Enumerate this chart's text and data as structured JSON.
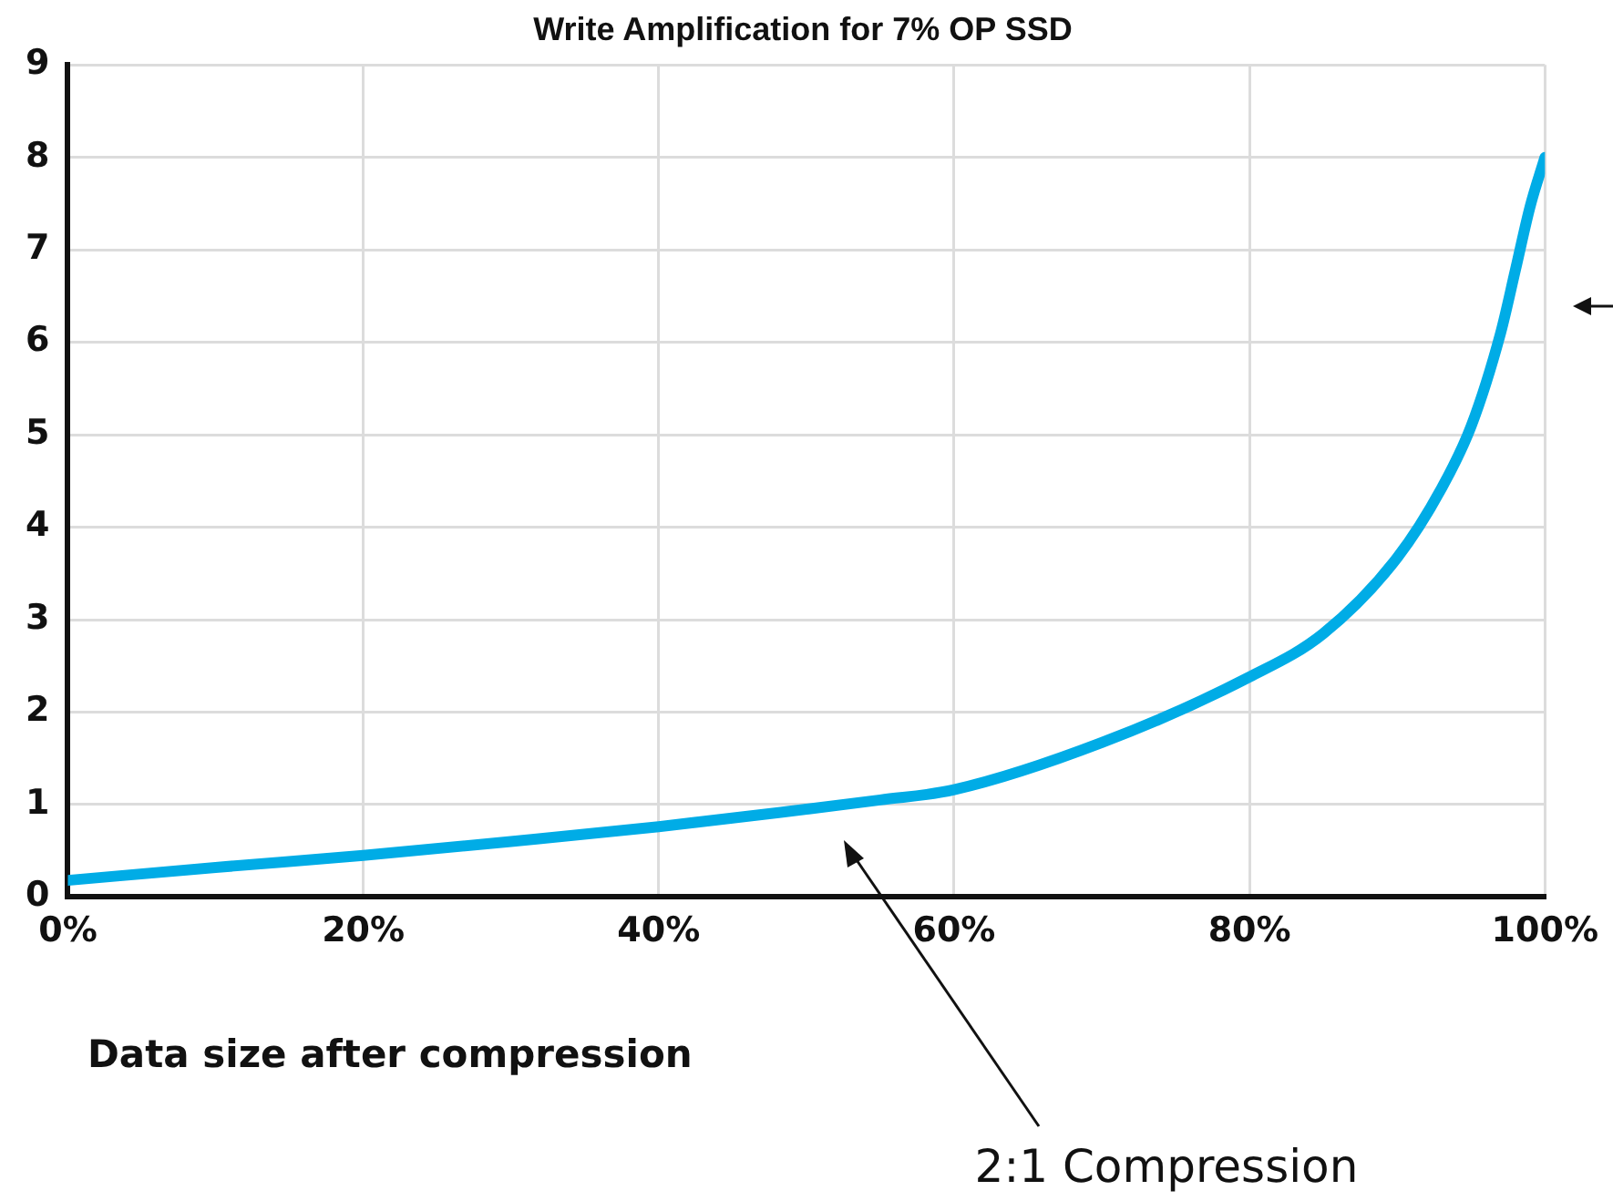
{
  "chart_data": {
    "type": "line",
    "title": "Write Amplification for 7% OP SSD",
    "xlabel": "Data size after compression",
    "x": [
      0,
      10,
      20,
      30,
      40,
      50,
      55,
      60,
      70,
      80,
      85,
      90,
      93,
      95,
      97,
      98,
      99,
      100
    ],
    "series": [
      {
        "color": "#00ace6",
        "values": [
          0.18,
          0.32,
          0.45,
          0.6,
          0.76,
          0.95,
          1.05,
          1.16,
          1.67,
          2.38,
          2.85,
          3.67,
          4.42,
          5.09,
          6.1,
          6.78,
          7.47,
          8.0
        ]
      }
    ],
    "xlim": [
      0,
      100
    ],
    "ylim": [
      0,
      9
    ],
    "xticks": [
      {
        "value": 0,
        "label": "0%"
      },
      {
        "value": 20,
        "label": "20%"
      },
      {
        "value": 40,
        "label": "40%"
      },
      {
        "value": 60,
        "label": "60%"
      },
      {
        "value": 80,
        "label": "80%"
      },
      {
        "value": 100,
        "label": "100%"
      }
    ],
    "yticks": [
      0,
      1,
      2,
      3,
      4,
      5,
      6,
      7,
      8,
      9
    ],
    "annotations": [
      "2:1 Compression"
    ],
    "grid": true,
    "legend": false,
    "marker": "none",
    "line_style": "solid"
  }
}
